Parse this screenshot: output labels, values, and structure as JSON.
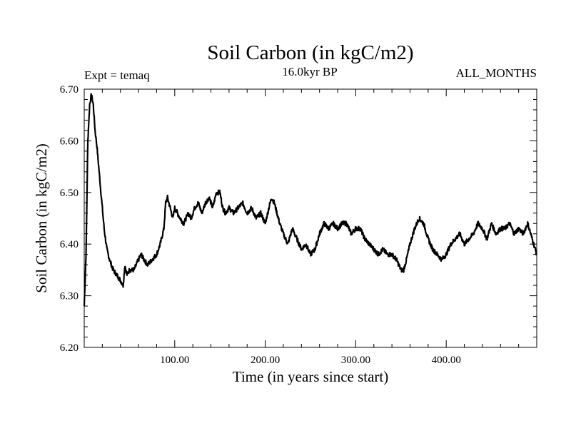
{
  "chart_data": {
    "type": "line",
    "title": "Soil Carbon (in kgC/m2)",
    "experiment_label": "Expt = temaq",
    "period_label": "16.0kyr BP",
    "months_label": "ALL_MONTHS",
    "xlabel": "Time (in years since start)",
    "ylabel": "Soil Carbon (in kgC/m2)",
    "xlim": [
      0,
      500
    ],
    "ylim": [
      6.2,
      6.7
    ],
    "xticks": [
      100,
      200,
      300,
      400
    ],
    "xtick_labels": [
      "100.00",
      "200.00",
      "300.00",
      "400.00"
    ],
    "yticks": [
      6.2,
      6.3,
      6.4,
      6.5,
      6.6,
      6.7
    ],
    "ytick_labels": [
      "6.20",
      "6.30",
      "6.40",
      "6.50",
      "6.60",
      "6.70"
    ],
    "series": [
      {
        "name": "Soil Carbon",
        "x": [
          0,
          2,
          4,
          6,
          8,
          10,
          12,
          14,
          16,
          18,
          20,
          22,
          25,
          28,
          32,
          36,
          40,
          43,
          45,
          47,
          50,
          55,
          60,
          63,
          66,
          70,
          75,
          80,
          84,
          88,
          90,
          92,
          95,
          98,
          100,
          103,
          106,
          110,
          115,
          118,
          122,
          126,
          130,
          134,
          138,
          142,
          146,
          150,
          153,
          156,
          160,
          165,
          170,
          175,
          180,
          185,
          190,
          195,
          200,
          204,
          207,
          210,
          213,
          216,
          220,
          225,
          230,
          235,
          240,
          245,
          250,
          255,
          260,
          265,
          270,
          275,
          280,
          285,
          290,
          295,
          300,
          305,
          310,
          315,
          320,
          325,
          330,
          335,
          340,
          345,
          350,
          353,
          356,
          360,
          365,
          370,
          375,
          380,
          385,
          390,
          395,
          400,
          405,
          410,
          415,
          420,
          425,
          430,
          435,
          440,
          445,
          450,
          455,
          460,
          465,
          470,
          475,
          480,
          485,
          490,
          495,
          500
        ],
        "values": [
          6.28,
          6.38,
          6.6,
          6.67,
          6.69,
          6.67,
          6.62,
          6.59,
          6.55,
          6.51,
          6.47,
          6.43,
          6.39,
          6.37,
          6.35,
          6.34,
          6.33,
          6.32,
          6.36,
          6.34,
          6.35,
          6.35,
          6.37,
          6.38,
          6.37,
          6.36,
          6.37,
          6.38,
          6.4,
          6.43,
          6.48,
          6.49,
          6.47,
          6.45,
          6.47,
          6.46,
          6.45,
          6.44,
          6.46,
          6.45,
          6.47,
          6.48,
          6.46,
          6.48,
          6.49,
          6.47,
          6.5,
          6.5,
          6.47,
          6.46,
          6.47,
          6.46,
          6.47,
          6.48,
          6.46,
          6.47,
          6.45,
          6.46,
          6.44,
          6.47,
          6.49,
          6.48,
          6.46,
          6.44,
          6.42,
          6.4,
          6.43,
          6.41,
          6.39,
          6.4,
          6.38,
          6.39,
          6.42,
          6.44,
          6.43,
          6.44,
          6.43,
          6.44,
          6.44,
          6.42,
          6.43,
          6.43,
          6.41,
          6.4,
          6.39,
          6.38,
          6.39,
          6.38,
          6.38,
          6.37,
          6.35,
          6.35,
          6.37,
          6.4,
          6.43,
          6.45,
          6.44,
          6.41,
          6.39,
          6.38,
          6.37,
          6.38,
          6.4,
          6.41,
          6.42,
          6.4,
          6.41,
          6.42,
          6.44,
          6.43,
          6.41,
          6.44,
          6.42,
          6.43,
          6.43,
          6.44,
          6.42,
          6.43,
          6.42,
          6.44,
          6.41,
          6.38
        ]
      }
    ]
  }
}
